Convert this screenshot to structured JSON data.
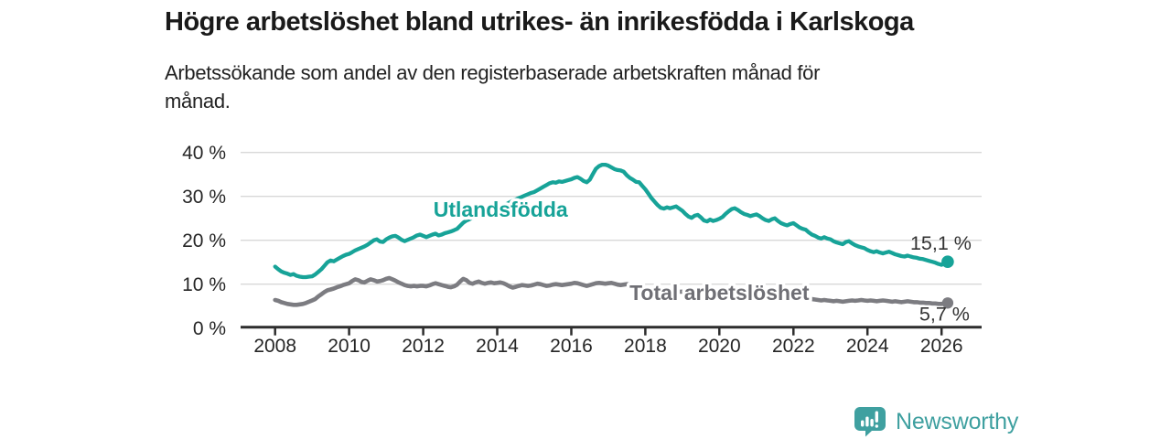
{
  "header": {
    "title": "Högre arbetslöshet bland utrikes- än inrikesfödda i Karlskoga",
    "subtitle": "Arbetssökande som andel av den registerbaserade arbetskraften månad för månad."
  },
  "footer": {
    "brand": "Newsworthy",
    "brand_color": "#3fa0a0"
  },
  "chart_data": {
    "type": "line",
    "title": "Högre arbetslöshet bland utrikes- än inrikesfödda i Karlskoga",
    "subtitle": "Arbetssökande som andel av den registerbaserade arbetskraften månad för månad.",
    "unit": "%",
    "frequency": "monthly",
    "grid": true,
    "legend_position": "inline-labels",
    "ylim": [
      0,
      42
    ],
    "style": {
      "grid_color": "#d8d8d8",
      "axis_color": "#2d2d2d",
      "axis_text_color": "#262626",
      "value_label_color": "#333333"
    },
    "x_axis": {
      "start_year": 2008,
      "end_label": "2026",
      "tick_values": [
        2008,
        2010,
        2012,
        2014,
        2016,
        2018,
        2020,
        2022,
        2024,
        2026
      ],
      "tick_labels": [
        "2008",
        "2010",
        "2012",
        "2014",
        "2016",
        "2018",
        "2020",
        "2022",
        "2024",
        "2026"
      ]
    },
    "y_axis": {
      "tick_values": [
        0,
        10,
        20,
        30,
        40
      ],
      "tick_labels": [
        "0 %",
        "10 %",
        "20 %",
        "30 %",
        "40 %"
      ]
    },
    "series": [
      {
        "id": "utlandsfodda",
        "name": "Utlandsfödda",
        "color": "#17a398",
        "end_label": "15,1 %",
        "end_value": 15.1,
        "label_anchor": {
          "year": 2014.09,
          "value": 27.0
        },
        "values": [
          14.0,
          13.4,
          12.9,
          12.6,
          12.4,
          12.1,
          12.3,
          11.9,
          11.7,
          11.6,
          11.6,
          11.7,
          11.8,
          12.2,
          12.8,
          13.4,
          14.2,
          15.0,
          15.4,
          15.2,
          15.6,
          16.0,
          16.4,
          16.7,
          16.9,
          17.3,
          17.7,
          18.0,
          18.3,
          18.6,
          19.0,
          19.5,
          20.0,
          20.2,
          19.7,
          19.6,
          20.2,
          20.6,
          20.9,
          21.0,
          20.6,
          20.1,
          19.8,
          20.1,
          20.4,
          20.7,
          21.1,
          21.3,
          21.0,
          20.7,
          21.0,
          21.3,
          21.5,
          21.1,
          21.3,
          21.6,
          21.8,
          22.0,
          22.3,
          22.6,
          23.3,
          24.0,
          24.5,
          24.8,
          25.1,
          25.4,
          25.7,
          26.0,
          26.3,
          26.6,
          26.8,
          27.0,
          27.2,
          27.5,
          27.8,
          28.2,
          28.6,
          29.0,
          29.3,
          29.6,
          29.9,
          30.2,
          30.5,
          30.8,
          31.0,
          31.4,
          31.8,
          32.2,
          32.6,
          33.0,
          33.2,
          33.1,
          33.4,
          33.3,
          33.5,
          33.7,
          33.9,
          34.2,
          34.4,
          34.0,
          33.5,
          33.2,
          33.8,
          35.1,
          36.3,
          36.9,
          37.2,
          37.2,
          37.0,
          36.6,
          36.2,
          36.0,
          35.9,
          35.6,
          34.8,
          34.2,
          33.8,
          33.3,
          33.2,
          32.4,
          31.6,
          30.6,
          29.6,
          28.8,
          28.0,
          27.4,
          27.2,
          27.5,
          27.3,
          27.5,
          27.7,
          27.2,
          26.7,
          26.0,
          25.4,
          25.1,
          25.6,
          25.8,
          25.2,
          24.5,
          24.3,
          24.7,
          24.4,
          24.6,
          24.9,
          25.3,
          26.0,
          26.6,
          27.1,
          27.3,
          26.9,
          26.4,
          26.0,
          25.8,
          25.5,
          25.7,
          25.9,
          25.5,
          25.0,
          24.6,
          24.4,
          24.8,
          25.0,
          24.4,
          23.9,
          23.6,
          23.4,
          23.7,
          23.9,
          23.4,
          22.9,
          22.6,
          22.4,
          21.8,
          21.3,
          21.0,
          20.6,
          20.4,
          20.7,
          20.4,
          20.2,
          19.8,
          19.5,
          19.3,
          19.1,
          19.6,
          19.8,
          19.3,
          18.9,
          18.6,
          18.4,
          18.2,
          17.8,
          17.5,
          17.3,
          17.5,
          17.2,
          17.0,
          17.2,
          17.4,
          17.1,
          16.8,
          16.6,
          16.4,
          16.3,
          16.5,
          16.3,
          16.1,
          16.0,
          15.8,
          15.7,
          15.5,
          15.3,
          15.1,
          14.9,
          14.6,
          14.4,
          14.7,
          15.1
        ]
      },
      {
        "id": "total-arbetsloshet",
        "name": "Total arbetslöshet",
        "color": "#7c7c81",
        "label_color": "#6f6f75",
        "end_label": "5,7 %",
        "end_value": 5.7,
        "label_anchor": {
          "year": 2020.0,
          "value": 8.1
        },
        "values": [
          6.4,
          6.2,
          5.9,
          5.7,
          5.5,
          5.4,
          5.3,
          5.3,
          5.4,
          5.5,
          5.7,
          6.0,
          6.3,
          6.6,
          7.2,
          7.7,
          8.2,
          8.6,
          8.8,
          9.0,
          9.3,
          9.5,
          9.8,
          10.0,
          10.2,
          10.7,
          11.1,
          10.9,
          10.5,
          10.4,
          10.8,
          11.1,
          10.9,
          10.6,
          10.7,
          10.9,
          11.2,
          11.4,
          11.1,
          10.8,
          10.4,
          10.1,
          9.8,
          9.6,
          9.5,
          9.6,
          9.5,
          9.6,
          9.6,
          9.5,
          9.7,
          10.0,
          10.2,
          10.0,
          9.8,
          9.6,
          9.4,
          9.3,
          9.5,
          9.9,
          10.6,
          11.2,
          10.9,
          10.3,
          10.1,
          10.4,
          10.6,
          10.3,
          10.1,
          10.3,
          10.4,
          10.2,
          10.3,
          10.4,
          10.2,
          9.9,
          9.5,
          9.2,
          9.4,
          9.6,
          9.8,
          9.7,
          9.6,
          9.7,
          9.9,
          10.1,
          10.0,
          9.8,
          9.6,
          9.7,
          9.9,
          10.0,
          9.9,
          9.8,
          9.9,
          10.0,
          10.1,
          10.3,
          10.2,
          10.0,
          9.8,
          9.6,
          9.8,
          10.0,
          10.2,
          10.3,
          10.2,
          10.1,
          10.2,
          10.3,
          10.1,
          9.9,
          9.8,
          9.9,
          10.0,
          9.9,
          9.7,
          9.5,
          9.4,
          9.3,
          9.2,
          9.1,
          9.0,
          8.9,
          8.8,
          8.7,
          8.6,
          8.5,
          8.5,
          8.4,
          8.4,
          8.3,
          8.3,
          8.2,
          8.1,
          8.0,
          8.0,
          7.9,
          7.9,
          7.8,
          7.8,
          7.9,
          7.9,
          8.0,
          8.2,
          8.5,
          8.8,
          9.0,
          9.1,
          9.0,
          8.9,
          8.8,
          8.7,
          8.6,
          8.5,
          8.4,
          8.3,
          8.2,
          8.0,
          7.9,
          7.7,
          7.6,
          7.5,
          7.4,
          7.3,
          7.2,
          7.1,
          7.0,
          7.0,
          6.9,
          6.8,
          6.8,
          6.7,
          6.6,
          6.6,
          6.5,
          6.4,
          6.3,
          6.4,
          6.3,
          6.2,
          6.1,
          6.2,
          6.1,
          6.0,
          6.1,
          6.2,
          6.3,
          6.2,
          6.3,
          6.4,
          6.3,
          6.2,
          6.3,
          6.2,
          6.1,
          6.2,
          6.3,
          6.2,
          6.1,
          6.0,
          6.1,
          6.0,
          5.9,
          6.0,
          6.1,
          6.0,
          5.9,
          5.9,
          5.8,
          5.8,
          5.7,
          5.7,
          5.6,
          5.6,
          5.5,
          5.5,
          5.6,
          5.7
        ]
      }
    ]
  }
}
